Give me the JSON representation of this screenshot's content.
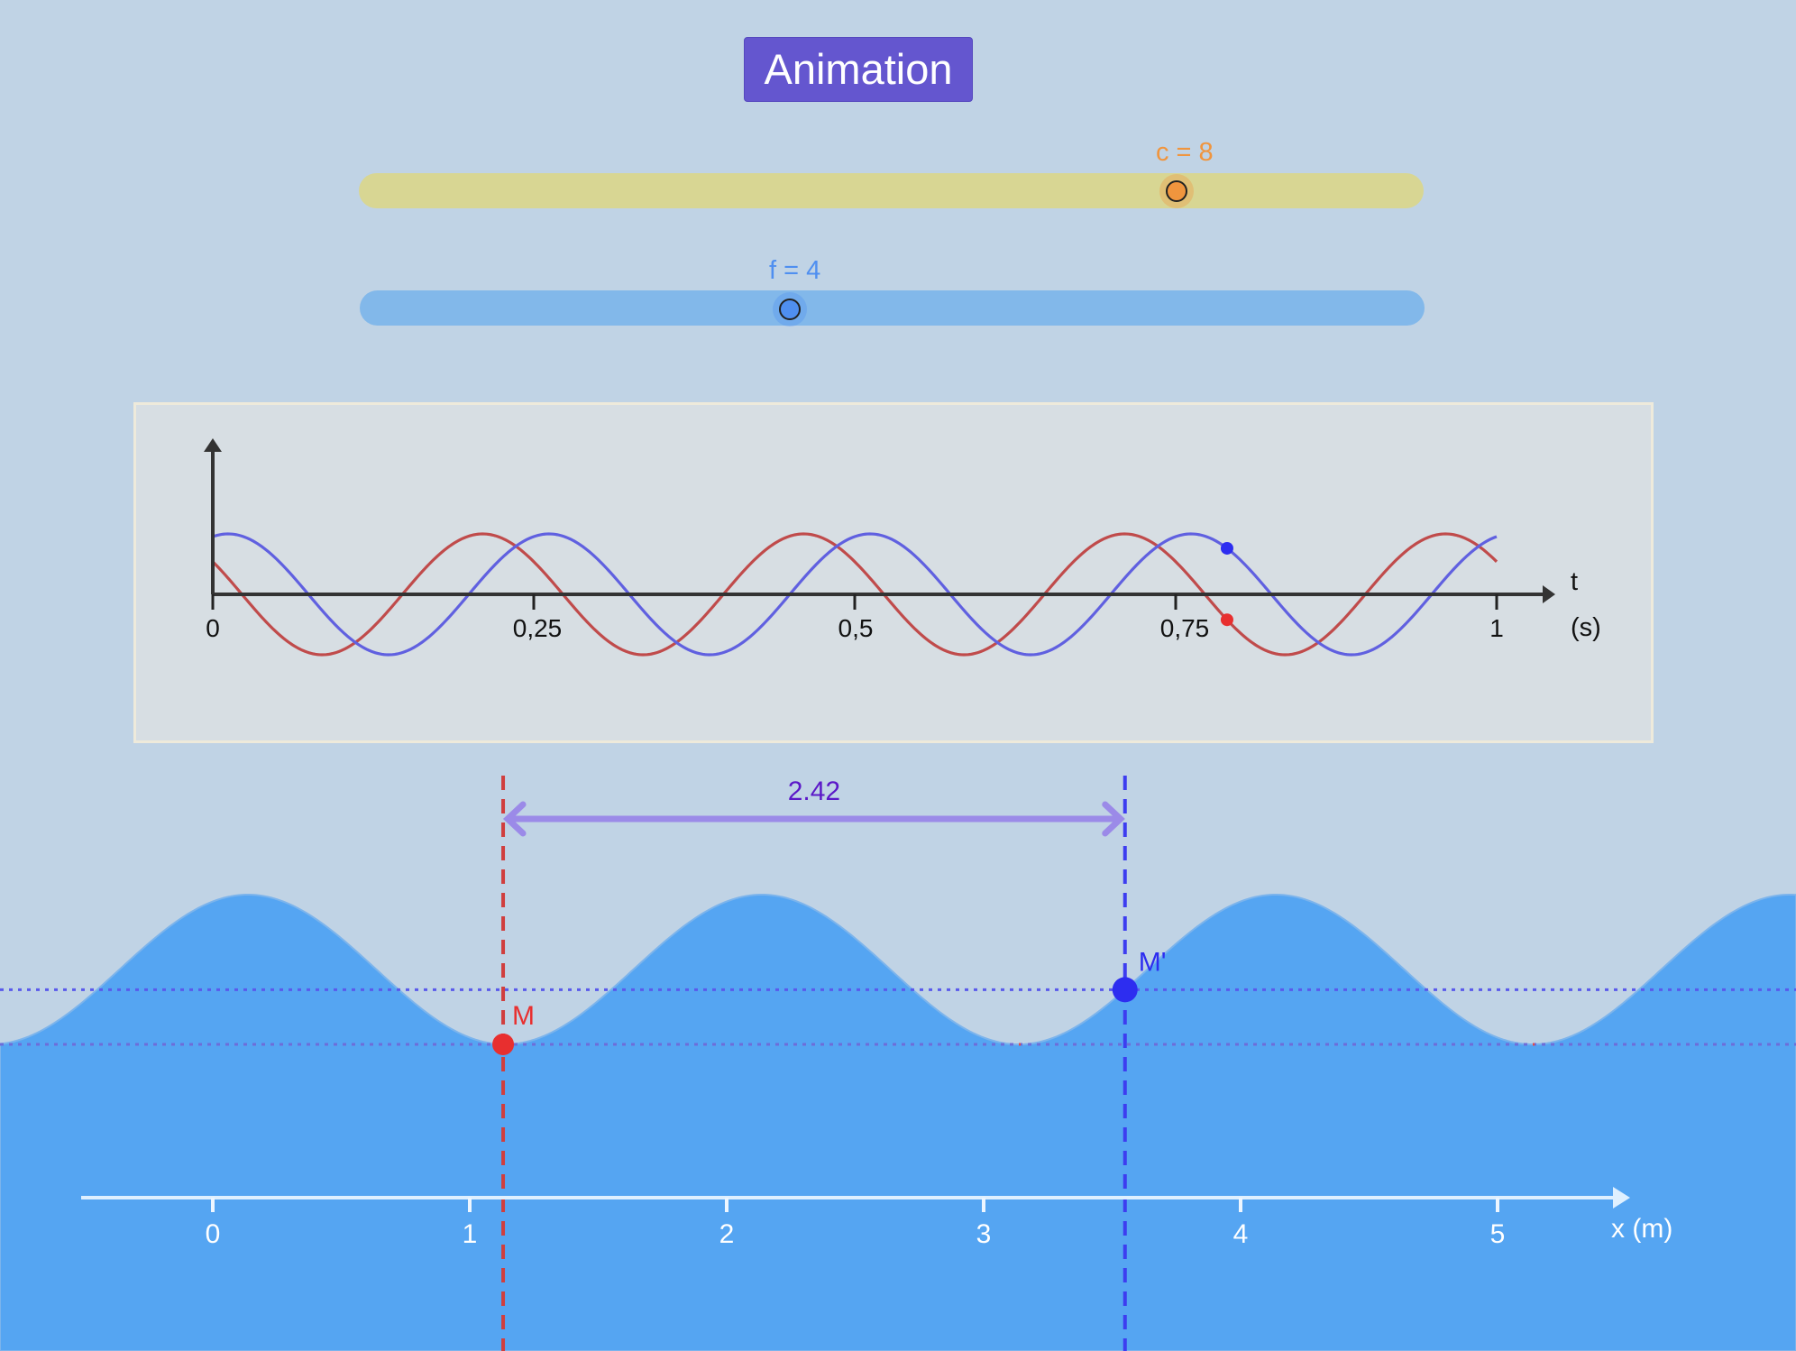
{
  "toolbar": {
    "animation_label": "Animation"
  },
  "sliders": {
    "c": {
      "label": "c = 8",
      "value": 8,
      "color": "#f0953e",
      "track_color": "#d8d693",
      "position": 0.77
    },
    "f": {
      "label": "f = 4",
      "value": 4,
      "color": "#4f8ff0",
      "track_color": "#82b8ea",
      "position": 0.4
    }
  },
  "time_graph": {
    "x_axis_label": "t",
    "x_axis_unit": "(s)",
    "ticks": [
      {
        "value": 0,
        "label": "0"
      },
      {
        "value": 0.25,
        "label": "0,25"
      },
      {
        "value": 0.5,
        "label": "0,5"
      },
      {
        "value": 0.75,
        "label": "0,75"
      },
      {
        "value": 1,
        "label": "1"
      }
    ],
    "current_time": 0.79,
    "series": [
      {
        "color": "#c04b4b",
        "frequency": 4,
        "phase": 1.0
      },
      {
        "color": "#6060e0",
        "frequency": 4,
        "phase": -0.3
      }
    ]
  },
  "wave": {
    "fill_color": "#55a5f2",
    "wavelength_m": 2,
    "distance_label": "2.42",
    "distance_color": "#5b18c8",
    "point_m": {
      "label": "M",
      "x_m": 1.13,
      "color": "#e82f2f"
    },
    "point_m_prime": {
      "label": "M'",
      "x_m": 3.55,
      "color": "#2d2df0"
    },
    "x_axis_label": "x (m)",
    "x_ticks": [
      "0",
      "1",
      "2",
      "3",
      "4",
      "5"
    ]
  }
}
